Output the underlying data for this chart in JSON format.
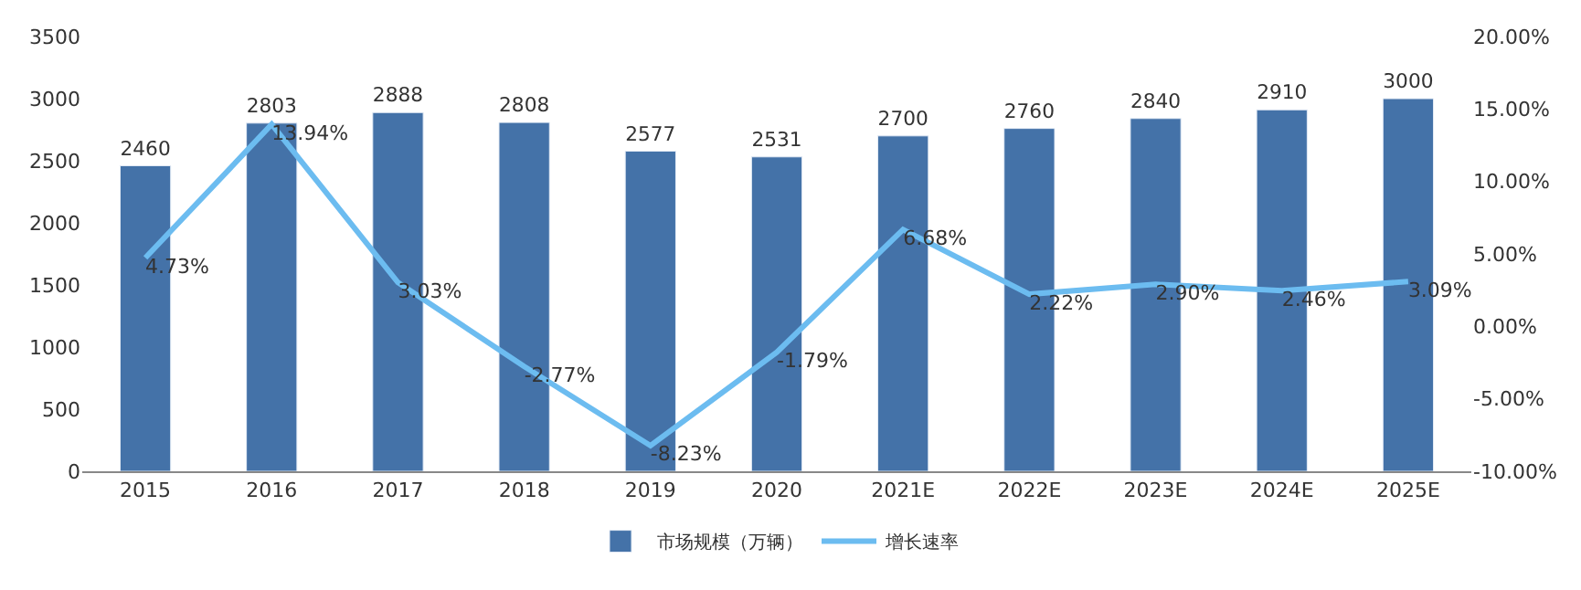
{
  "chart_data": {
    "type": "bar",
    "categories": [
      "2015",
      "2016",
      "2017",
      "2018",
      "2019",
      "2020",
      "2021E",
      "2022E",
      "2023E",
      "2024E",
      "2025E"
    ],
    "series": [
      {
        "name": "市场规模（万辆）",
        "color": "#4472a8",
        "values": [
          2460,
          2803,
          2888,
          2808,
          2577,
          2531,
          2700,
          2760,
          2840,
          2910,
          3000
        ],
        "value_labels": [
          "2460",
          "2803",
          "2888",
          "2808",
          "2577",
          "2531",
          "2700",
          "2760",
          "2840",
          "2910",
          "3000"
        ]
      },
      {
        "name": "增长速率",
        "color": "#6cbcf0",
        "type": "line",
        "axis": "y2",
        "values": [
          4.73,
          13.94,
          3.03,
          -2.77,
          -8.23,
          -1.79,
          6.68,
          2.22,
          2.9,
          2.46,
          3.09
        ],
        "value_labels": [
          "4.73%",
          "13.94%",
          "3.03%",
          "-2.77%",
          "-8.23%",
          "-1.79%",
          "6.68%",
          "2.22%",
          "2.90%",
          "2.46%",
          "3.09%"
        ]
      }
    ],
    "ylim": [
      0,
      3500
    ],
    "yticks": [
      0,
      500,
      1000,
      1500,
      2000,
      2500,
      3000,
      3500
    ],
    "y2lim": [
      -10,
      20
    ],
    "y2ticks": [
      {
        "value": -10,
        "label": "-10.00%"
      },
      {
        "value": -5,
        "label": "-5.00%"
      },
      {
        "value": 0,
        "label": "0.00%"
      },
      {
        "value": 5,
        "label": "5.00%"
      },
      {
        "value": 10,
        "label": "10.00%"
      },
      {
        "value": 15,
        "label": "15.00%"
      },
      {
        "value": 20,
        "label": "20.00%"
      }
    ],
    "grid": false,
    "legend": "bottom",
    "marker": "none",
    "line_style": "solid"
  }
}
